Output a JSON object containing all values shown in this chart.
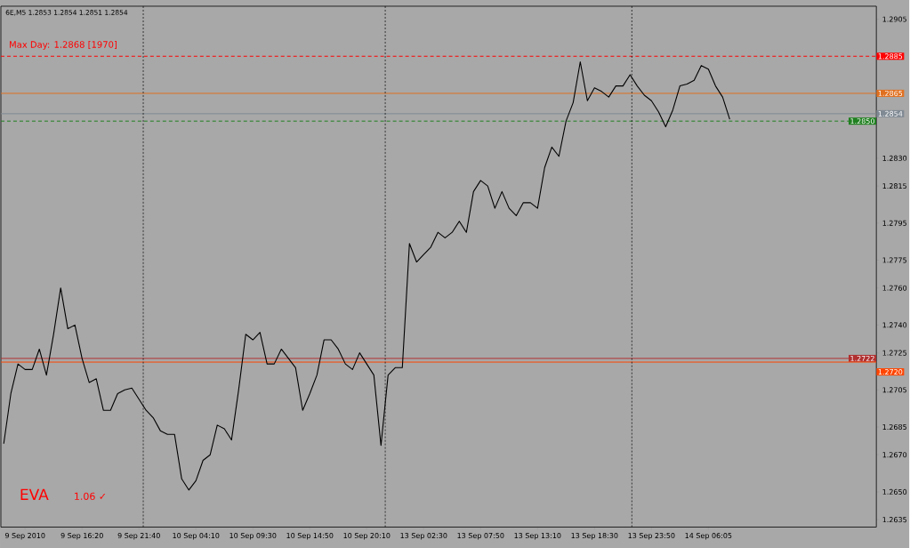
{
  "chart_data": {
    "type": "line",
    "annotations": [
      "6E,M5  1.2853 1.2854 1.2851 1.2854",
      "Max Day: 1.2868 [1970]",
      "EVA",
      "1.06 ✓"
    ],
    "categories": [
      null,
      null,
      null,
      "9 Sep 2010",
      null,
      null,
      null,
      null,
      null,
      null,
      null,
      "9 Sep 16:20",
      null,
      null,
      null,
      null,
      null,
      null,
      null,
      "9 Sep 21:40",
      null,
      null,
      null,
      null,
      null,
      null,
      null,
      "10 Sep 04:10",
      null,
      null,
      null,
      null,
      null,
      null,
      null,
      "10 Sep 09:30",
      null,
      null,
      null,
      null,
      null,
      null,
      null,
      "10 Sep 14:50",
      null,
      null,
      null,
      null,
      null,
      null,
      null,
      "10 Sep 20:10",
      null,
      null,
      null,
      null,
      null,
      null,
      null,
      "13 Sep 02:30",
      null,
      null,
      null,
      null,
      null,
      null,
      null,
      "13 Sep 07:50",
      null,
      null,
      null,
      null,
      null,
      null,
      null,
      "13 Sep 13:10",
      null,
      null,
      null,
      null,
      null,
      null,
      null,
      "13 Sep 18:30",
      null,
      null,
      null,
      null,
      null,
      null,
      null,
      "13 Sep 23:50",
      null,
      null,
      null,
      null,
      null,
      null,
      null,
      "14 Sep 06:05",
      null,
      null,
      null,
      null,
      null,
      null,
      null,
      null,
      null,
      null,
      null,
      null,
      null,
      null,
      null,
      null,
      null,
      null,
      null,
      null,
      null,
      null,
      null
    ],
    "series": [
      {
        "color": "#000000",
        "values": [
          1.2676,
          1.2703,
          1.2719,
          1.2716,
          1.2716,
          1.2727,
          1.2713,
          1.2735,
          1.276,
          1.2738,
          1.274,
          1.2722,
          1.2709,
          1.2711,
          1.2694,
          1.2694,
          1.2703,
          1.2705,
          1.2706,
          1.27,
          1.2694,
          1.269,
          1.2683,
          1.2681,
          1.2681,
          1.2657,
          1.2651,
          1.2656,
          1.2667,
          1.267,
          1.2686,
          1.2684,
          1.2678,
          1.2705,
          1.2735,
          1.2732,
          1.2736,
          1.2719,
          1.2719,
          1.2727,
          1.2722,
          1.2717,
          1.2694,
          1.2703,
          1.2713,
          1.2732,
          1.2732,
          1.2727,
          1.2719,
          1.2716,
          1.2725,
          1.2719,
          1.2713,
          1.2675,
          1.2713,
          1.2717,
          1.2717,
          1.2784,
          1.2774,
          1.2778,
          1.2782,
          1.279,
          1.2787,
          1.279,
          1.2796,
          1.279,
          1.2812,
          1.2818,
          1.2815,
          1.2803,
          1.2812,
          1.2803,
          1.2799,
          1.2806,
          1.2806,
          1.2803,
          1.2825,
          1.2836,
          1.2831,
          1.285,
          1.286,
          1.2882,
          1.2861,
          1.2868,
          1.2866,
          1.2863,
          1.2869,
          1.2869,
          1.2875,
          1.2869,
          1.2864,
          1.2861,
          1.2855,
          1.2847,
          1.2856,
          1.2869,
          1.287,
          1.2872,
          1.288,
          1.2878,
          1.2869,
          1.2863,
          1.2851,
          null,
          null,
          null,
          null,
          null,
          null,
          null,
          null,
          null,
          null,
          null,
          null,
          null,
          null,
          null,
          null,
          null,
          null,
          null,
          null
        ]
      }
    ],
    "ylim": [
      1.2631,
      1.2912
    ],
    "yticks": [
      1.2905,
      {
        "value": 1.283,
        "label": "1.2830"
      },
      1.2815,
      1.2795,
      1.2775,
      {
        "value": 1.276,
        "label": "1.2760"
      },
      {
        "value": 1.274,
        "label": "1.2740"
      },
      1.2725,
      1.2705,
      1.2685,
      {
        "value": 1.267,
        "label": "1.2670"
      },
      {
        "value": 1.265,
        "label": "1.2650"
      },
      1.2635
    ],
    "ref_lines": [
      {
        "axis": "y",
        "value": 1.2885,
        "label": "1.2885",
        "color": "#ff0000",
        "line_style": "dashed"
      },
      {
        "axis": "y",
        "value": 1.2865,
        "label": "1.2865",
        "color": "#e07020",
        "line_style": "solid"
      },
      {
        "axis": "y",
        "value": 1.2854,
        "label": "1.2854",
        "color": "#808a94",
        "line_style": "solid"
      },
      {
        "axis": "y",
        "value": 1.285,
        "label": "1.2850",
        "color": "#208020",
        "line_style": "dashed"
      },
      {
        "axis": "y",
        "value": 1.2722,
        "label": "1.2722",
        "color": "#b03030",
        "line_style": "solid"
      },
      {
        "axis": "y",
        "value": 1.272,
        "label": "1.2720",
        "color": "#ff4500",
        "line_style": "solid"
      }
    ],
    "marker": "none",
    "line_style": "solid"
  }
}
